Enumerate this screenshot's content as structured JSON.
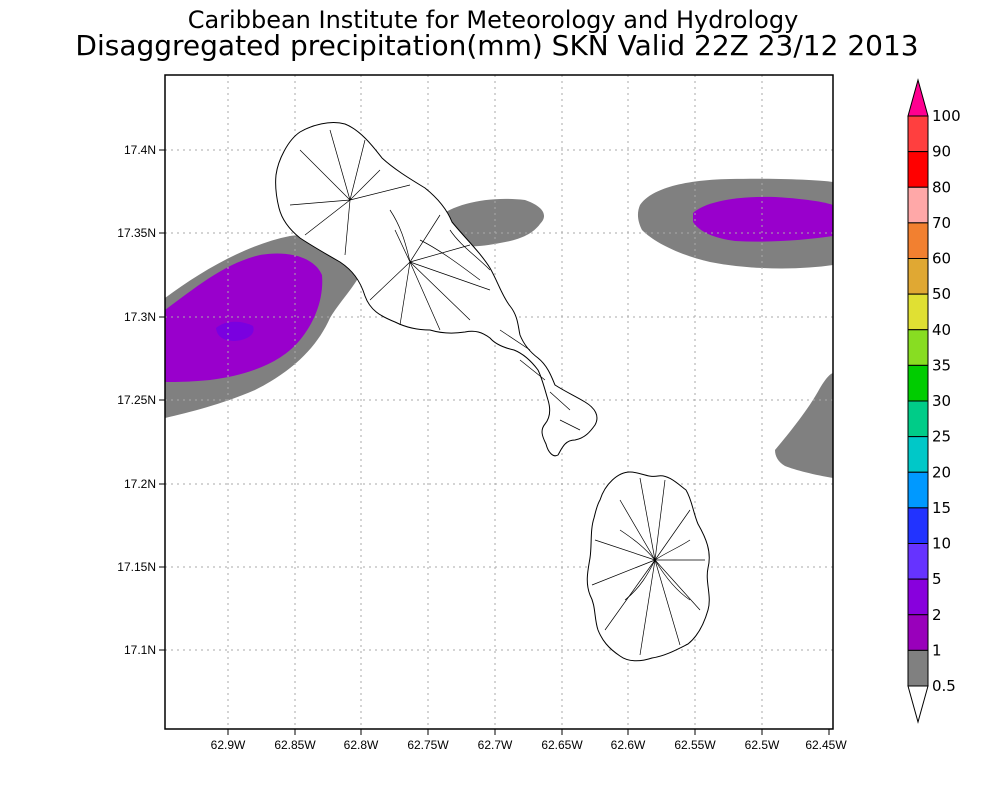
{
  "header": {
    "title": "Caribbean Institute for Meteorology and Hydrology",
    "subtitle": "Disaggregated precipitation(mm) SKN Valid 22Z 23/12 2013"
  },
  "map": {
    "x_ticks": [
      "62.9W",
      "62.85W",
      "62.8W",
      "62.75W",
      "62.7W",
      "62.65W",
      "62.6W",
      "62.55W",
      "62.5W",
      "62.45W"
    ],
    "y_ticks": [
      "17.4N",
      "17.35N",
      "17.3N",
      "17.25N",
      "17.2N",
      "17.15N",
      "17.1N"
    ],
    "grid": true,
    "grid_style": "dotted",
    "colors": {
      "land_outline": "#000000",
      "band_0_5_to_1": "#808080",
      "band_1_to_2": "#9900cc",
      "band_2_to_5": "#7a00e0"
    }
  },
  "colorbar": {
    "labels": [
      "100",
      "90",
      "80",
      "70",
      "60",
      "50",
      "40",
      "35",
      "30",
      "25",
      "20",
      "15",
      "10",
      "5",
      "2",
      "1",
      "0.5"
    ],
    "colors": [
      "#ff0090",
      "#ff3f3f",
      "#ff0000",
      "#ffa8a8",
      "#f28030",
      "#e0a833",
      "#e0e033",
      "#88dd22",
      "#00cc00",
      "#00cc88",
      "#00c8c8",
      "#0099ff",
      "#2233ff",
      "#6633ff",
      "#8800dd",
      "#9900bb",
      "#808080"
    ]
  }
}
